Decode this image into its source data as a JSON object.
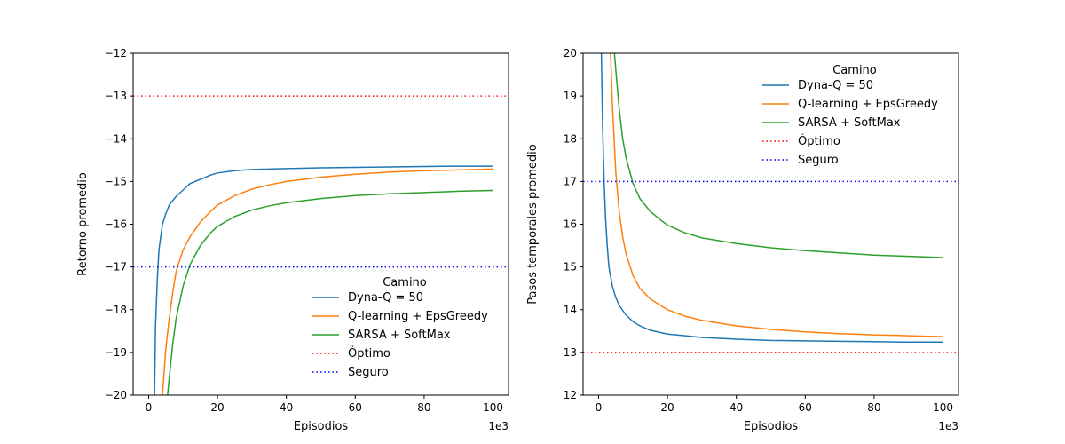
{
  "chart_data": [
    {
      "type": "line",
      "xlabel": "Episodios",
      "x_offset_label": "1e3",
      "ylabel": "Retorno promedio",
      "xlim": [
        -4.5,
        104.5
      ],
      "ylim": [
        -20,
        -12
      ],
      "xticks": [
        0,
        20,
        40,
        60,
        80,
        100
      ],
      "yticks": [
        -20,
        -19,
        -18,
        -17,
        -16,
        -15,
        -14,
        -13,
        -12
      ],
      "ytick_labels": [
        "−20",
        "−19",
        "−18",
        "−17",
        "−16",
        "−15",
        "−14",
        "−13",
        "−12"
      ],
      "legend_title": "Camino",
      "legend_position": "lower-right",
      "series": [
        {
          "name": "Dyna-Q = 50",
          "color": "#1f77b4",
          "style": "solid",
          "x": [
            1.7,
            2,
            2.5,
            3,
            4,
            5,
            6,
            8,
            10,
            12,
            15,
            18,
            20,
            25,
            30,
            40,
            50,
            60,
            70,
            80,
            90,
            100
          ],
          "y": [
            -20,
            -18.4,
            -17.3,
            -16.6,
            -16.0,
            -15.75,
            -15.55,
            -15.35,
            -15.2,
            -15.05,
            -14.95,
            -14.85,
            -14.8,
            -14.75,
            -14.72,
            -14.7,
            -14.68,
            -14.67,
            -14.66,
            -14.65,
            -14.64,
            -14.64
          ]
        },
        {
          "name": "Q-learning + EpsGreedy",
          "color": "#ff7f0e",
          "style": "solid",
          "x": [
            4,
            5,
            6,
            7,
            8,
            10,
            12,
            15,
            18,
            20,
            25,
            30,
            35,
            40,
            50,
            60,
            70,
            80,
            90,
            100
          ],
          "y": [
            -20,
            -18.9,
            -18.2,
            -17.6,
            -17.1,
            -16.6,
            -16.3,
            -15.95,
            -15.7,
            -15.55,
            -15.33,
            -15.18,
            -15.08,
            -15.0,
            -14.9,
            -14.83,
            -14.78,
            -14.75,
            -14.73,
            -14.71
          ]
        },
        {
          "name": "SARSA + SoftMax",
          "color": "#2ca02c",
          "style": "solid",
          "x": [
            5.5,
            6,
            7,
            8,
            10,
            12,
            15,
            18,
            20,
            25,
            30,
            35,
            40,
            50,
            60,
            70,
            80,
            90,
            100
          ],
          "y": [
            -20,
            -19.6,
            -18.8,
            -18.2,
            -17.45,
            -16.95,
            -16.5,
            -16.2,
            -16.05,
            -15.82,
            -15.67,
            -15.57,
            -15.5,
            -15.4,
            -15.33,
            -15.29,
            -15.26,
            -15.23,
            -15.21
          ]
        },
        {
          "name": "Óptimo",
          "color": "#ff0000",
          "style": "dotted",
          "x": [
            -4.5,
            104.5
          ],
          "y": [
            -13,
            -13
          ]
        },
        {
          "name": "Seguro",
          "color": "#0000ff",
          "style": "dotted",
          "x": [
            -4.5,
            104.5
          ],
          "y": [
            -17,
            -17
          ]
        }
      ]
    },
    {
      "type": "line",
      "xlabel": "Episodios",
      "x_offset_label": "1e3",
      "ylabel": "Pasos temporales promedio",
      "xlim": [
        -4.5,
        104.5
      ],
      "ylim": [
        12,
        20
      ],
      "xticks": [
        0,
        20,
        40,
        60,
        80,
        100
      ],
      "yticks": [
        12,
        13,
        14,
        15,
        16,
        17,
        18,
        19,
        20
      ],
      "ytick_labels": [
        "12",
        "13",
        "14",
        "15",
        "16",
        "17",
        "18",
        "19",
        "20"
      ],
      "legend_title": "Camino",
      "legend_position": "upper-right",
      "series": [
        {
          "name": "Dyna-Q = 50",
          "color": "#1f77b4",
          "style": "solid",
          "x": [
            0.8,
            1.2,
            1.6,
            2,
            2.5,
            3,
            4,
            5,
            6,
            8,
            10,
            12,
            15,
            20,
            30,
            40,
            50,
            60,
            70,
            80,
            90,
            100
          ],
          "y": [
            20,
            18.2,
            17.0,
            16.2,
            15.5,
            15.0,
            14.55,
            14.28,
            14.1,
            13.87,
            13.72,
            13.62,
            13.52,
            13.43,
            13.35,
            13.31,
            13.28,
            13.27,
            13.26,
            13.25,
            13.24,
            13.24
          ]
        },
        {
          "name": "Q-learning + EpsGreedy",
          "color": "#ff7f0e",
          "style": "solid",
          "x": [
            3.5,
            4,
            5,
            6,
            7,
            8,
            10,
            12,
            15,
            20,
            25,
            30,
            40,
            50,
            60,
            70,
            80,
            90,
            100
          ],
          "y": [
            20,
            18.8,
            17.2,
            16.3,
            15.7,
            15.3,
            14.8,
            14.5,
            14.25,
            14.0,
            13.85,
            13.75,
            13.62,
            13.54,
            13.48,
            13.44,
            13.41,
            13.39,
            13.37
          ]
        },
        {
          "name": "SARSA + SoftMax",
          "color": "#2ca02c",
          "style": "solid",
          "x": [
            4.6,
            5,
            6,
            7,
            8,
            10,
            12,
            15,
            18,
            20,
            25,
            30,
            40,
            50,
            60,
            70,
            80,
            90,
            100
          ],
          "y": [
            20,
            19.6,
            18.7,
            18.0,
            17.55,
            16.95,
            16.6,
            16.3,
            16.1,
            15.98,
            15.8,
            15.68,
            15.55,
            15.45,
            15.38,
            15.33,
            15.28,
            15.25,
            15.22
          ]
        },
        {
          "name": "Óptimo",
          "color": "#ff0000",
          "style": "dotted",
          "x": [
            -4.5,
            104.5
          ],
          "y": [
            13,
            13
          ]
        },
        {
          "name": "Seguro",
          "color": "#0000ff",
          "style": "dotted",
          "x": [
            -4.5,
            104.5
          ],
          "y": [
            17,
            17
          ]
        }
      ]
    }
  ]
}
